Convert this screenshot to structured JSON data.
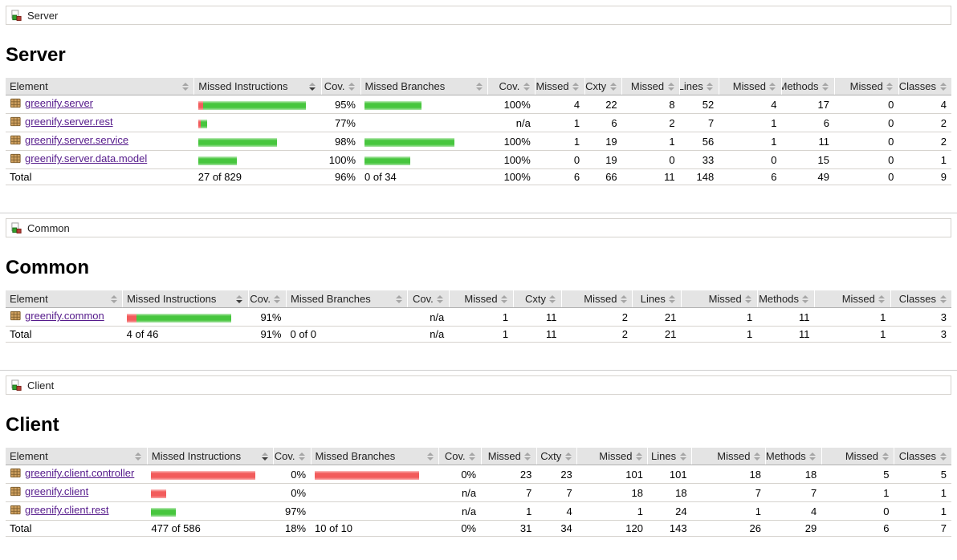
{
  "page": {
    "columns": [
      "Element",
      "Missed Instructions",
      "Cov.",
      "Missed Branches",
      "Cov.",
      "Missed",
      "Cxty",
      "Missed",
      "Lines",
      "Missed",
      "Methods",
      "Missed",
      "Classes"
    ],
    "sort": {
      "column": "Missed Instructions",
      "column_index": 1,
      "direction": "desc"
    }
  },
  "colors": {
    "link": "#551a8b",
    "header_bg": "#e4e4e4",
    "green_bar": "#47c63e",
    "red_bar": "#f25c5c"
  },
  "sections": [
    {
      "id": "server",
      "breadcrumb": "Server",
      "title": "Server",
      "rows": [
        {
          "element": "greenify.server",
          "instr_bar": {
            "red": 6,
            "green": 128
          },
          "instr_cov": "95%",
          "branch_bar": {
            "red": 0,
            "green": 71
          },
          "branch_cov": "100%",
          "nums": [
            "4",
            "22",
            "8",
            "52",
            "4",
            "17",
            "0",
            "4"
          ]
        },
        {
          "element": "greenify.server.rest",
          "instr_bar": {
            "red": 3,
            "green": 8
          },
          "instr_cov": "77%",
          "branch_bar": {
            "red": 0,
            "green": 0
          },
          "branch_cov": "n/a",
          "nums": [
            "1",
            "6",
            "2",
            "7",
            "1",
            "6",
            "0",
            "2"
          ]
        },
        {
          "element": "greenify.server.service",
          "instr_bar": {
            "red": 0,
            "green": 98
          },
          "instr_cov": "98%",
          "branch_bar": {
            "red": 0,
            "green": 112
          },
          "branch_cov": "100%",
          "nums": [
            "1",
            "19",
            "1",
            "56",
            "1",
            "11",
            "0",
            "2"
          ]
        },
        {
          "element": "greenify.server.data.model",
          "instr_bar": {
            "red": 0,
            "green": 48
          },
          "instr_cov": "100%",
          "branch_bar": {
            "red": 0,
            "green": 57
          },
          "branch_cov": "100%",
          "nums": [
            "0",
            "19",
            "0",
            "33",
            "0",
            "15",
            "0",
            "1"
          ]
        }
      ],
      "total": {
        "label": "Total",
        "instr": "27 of 829",
        "instr_cov": "96%",
        "branch": "0 of 34",
        "branch_cov": "100%",
        "nums": [
          "6",
          "66",
          "11",
          "148",
          "6",
          "49",
          "0",
          "9"
        ]
      }
    },
    {
      "id": "common",
      "breadcrumb": "Common",
      "title": "Common",
      "rows": [
        {
          "element": "greenify.common",
          "instr_bar": {
            "red": 12,
            "green": 118
          },
          "instr_cov": "91%",
          "branch_bar": {
            "red": 0,
            "green": 0
          },
          "branch_cov": "n/a",
          "nums": [
            "1",
            "11",
            "2",
            "21",
            "1",
            "11",
            "1",
            "3"
          ]
        }
      ],
      "total": {
        "label": "Total",
        "instr": "4 of 46",
        "instr_cov": "91%",
        "branch": "0 of 0",
        "branch_cov": "n/a",
        "nums": [
          "1",
          "11",
          "2",
          "21",
          "1",
          "11",
          "1",
          "3"
        ]
      }
    },
    {
      "id": "client",
      "breadcrumb": "Client",
      "title": "Client",
      "rows": [
        {
          "element": "greenify.client.controller",
          "instr_bar": {
            "red": 130,
            "green": 0
          },
          "instr_cov": "0%",
          "branch_bar": {
            "red": 130,
            "green": 0
          },
          "branch_cov": "0%",
          "nums": [
            "23",
            "23",
            "101",
            "101",
            "18",
            "18",
            "5",
            "5"
          ]
        },
        {
          "element": "greenify.client",
          "instr_bar": {
            "red": 19,
            "green": 0
          },
          "instr_cov": "0%",
          "branch_bar": {
            "red": 0,
            "green": 0
          },
          "branch_cov": "n/a",
          "nums": [
            "7",
            "7",
            "18",
            "18",
            "7",
            "7",
            "1",
            "1"
          ]
        },
        {
          "element": "greenify.client.rest",
          "instr_bar": {
            "red": 0,
            "green": 31
          },
          "instr_cov": "97%",
          "branch_bar": {
            "red": 0,
            "green": 0
          },
          "branch_cov": "n/a",
          "nums": [
            "1",
            "4",
            "1",
            "24",
            "1",
            "4",
            "0",
            "1"
          ]
        }
      ],
      "total": {
        "label": "Total",
        "instr": "477 of 586",
        "instr_cov": "18%",
        "branch": "10 of 10",
        "branch_cov": "0%",
        "nums": [
          "31",
          "34",
          "120",
          "143",
          "26",
          "29",
          "6",
          "7"
        ]
      }
    }
  ]
}
